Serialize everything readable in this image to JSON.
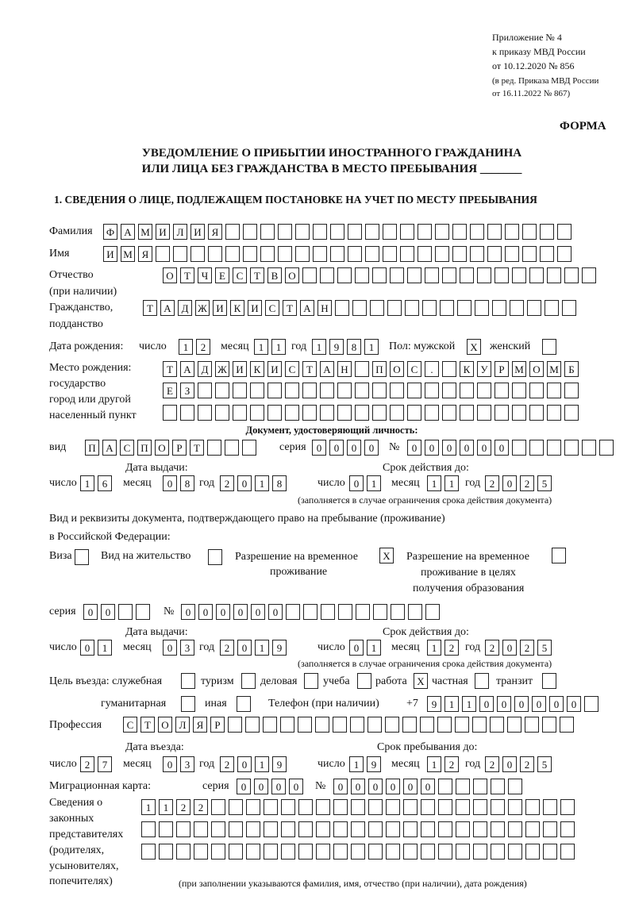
{
  "header": {
    "appendix_line1": "Приложение № 4",
    "appendix_line2": "к приказу МВД России",
    "appendix_line3": "от 10.12.2020 № 856",
    "edition_line1": "(в ред. Приказа МВД России",
    "edition_line2": "от 16.11.2022 № 867)",
    "form_label": "ФОРМА",
    "title_line1": "УВЕДОМЛЕНИЕ О ПРИБЫТИИ ИНОСТРАННОГО ГРАЖДАНИНА",
    "title_line2": "ИЛИ ЛИЦА БЕЗ ГРАЖДАНСТВА В МЕСТО ПРЕБЫВАНИЯ _______",
    "section1": "1. СВЕДЕНИЯ О ЛИЦЕ, ПОДЛЕЖАЩЕМ ПОСТАНОВКЕ НА УЧЕТ ПО МЕСТУ ПРЕБЫВАНИЯ"
  },
  "labels": {
    "surname": "Фамилия",
    "name": "Имя",
    "patronymic": "Отчество",
    "patronymic_note": "(при наличии)",
    "citizenship": "Гражданство,",
    "citizenship2": "подданство",
    "birth_date": "Дата рождения:",
    "day": "число",
    "month": "месяц",
    "year": "год",
    "sex": "Пол: мужской",
    "female": "женский",
    "birthplace1": "Место рождения:",
    "birthplace2": "государство",
    "birthplace3": "город или другой",
    "birthplace4": "населенный пункт",
    "id_doc": "Документ, удостоверяющий личность:",
    "kind": "вид",
    "series": "серия",
    "number": "№",
    "issue_date": "Дата выдачи:",
    "valid_until": "Срок действия до:",
    "valid_note": "(заполняется в случае ограничения срока действия документа)",
    "stay_doc1": "Вид и реквизиты документа, подтверждающего право на пребывание (проживание)",
    "stay_doc2": "в Российской Федерации:",
    "visa": "Виза",
    "residence": "Вид на жительство",
    "temp_res1": "Разрешение на временное",
    "temp_res2": "проживание",
    "temp_edu1": "Разрешение на временное",
    "temp_edu2": "проживание в целях",
    "temp_edu3": "получения образования",
    "purpose": "Цель въезда: служебная",
    "tourism": "туризм",
    "business": "деловая",
    "study": "учеба",
    "work": "работа",
    "private": "частная",
    "transit": "транзит",
    "humanitarian": "гуманитарная",
    "other": "иная",
    "phone": "Телефон (при наличии)",
    "phone_prefix": "+7",
    "profession": "Профессия",
    "entry_date": "Дата въезда:",
    "stay_until": "Срок пребывания до:",
    "migration_card": "Миграционная карта:",
    "rep1": "Сведения о",
    "rep2": "законных",
    "rep3": "представителях",
    "rep4": "(родителях,",
    "rep5": "усыновителях,",
    "rep6": "попечителях)",
    "rep_note": "(при заполнении указываются фамилия, имя, отчество (при наличии), дата рождения)"
  },
  "fields": {
    "surname": [
      "Ф",
      "А",
      "М",
      "И",
      "Л",
      "И",
      "Я",
      "",
      "",
      "",
      "",
      "",
      "",
      "",
      "",
      "",
      "",
      "",
      "",
      "",
      "",
      "",
      "",
      "",
      "",
      "",
      ""
    ],
    "name": [
      "И",
      "М",
      "Я",
      "",
      "",
      "",
      "",
      "",
      "",
      "",
      "",
      "",
      "",
      "",
      "",
      "",
      "",
      "",
      "",
      "",
      "",
      "",
      "",
      "",
      "",
      "",
      ""
    ],
    "patronymic": [
      "О",
      "Т",
      "Ч",
      "Е",
      "С",
      "Т",
      "В",
      "О",
      "",
      "",
      "",
      "",
      "",
      "",
      "",
      "",
      "",
      "",
      "",
      "",
      "",
      "",
      "",
      "",
      ""
    ],
    "citizenship": [
      "Т",
      "А",
      "Д",
      "Ж",
      "И",
      "К",
      "И",
      "С",
      "Т",
      "А",
      "Н",
      "",
      "",
      "",
      "",
      "",
      "",
      "",
      "",
      "",
      "",
      "",
      "",
      "",
      ""
    ],
    "birth_day": [
      "1",
      "2"
    ],
    "birth_month": [
      "1",
      "1"
    ],
    "birth_year": [
      "1",
      "9",
      "8",
      "1"
    ],
    "sex_male": [
      "X"
    ],
    "sex_female": [
      ""
    ],
    "birthplace_row1": [
      "Т",
      "А",
      "Д",
      "Ж",
      "И",
      "К",
      "И",
      "С",
      "Т",
      "А",
      "Н",
      "",
      "П",
      "О",
      "С",
      ".",
      "",
      "К",
      "У",
      "Р",
      "М",
      "О",
      "М",
      "Б"
    ],
    "birthplace_row2": [
      "Е",
      "З",
      "",
      "",
      "",
      "",
      "",
      "",
      "",
      "",
      "",
      "",
      "",
      "",
      "",
      "",
      "",
      "",
      "",
      "",
      "",
      "",
      "",
      ""
    ],
    "birthplace_row3": [
      "",
      "",
      "",
      "",
      "",
      "",
      "",
      "",
      "",
      "",
      "",
      "",
      "",
      "",
      "",
      "",
      "",
      "",
      "",
      "",
      "",
      "",
      "",
      ""
    ],
    "id_kind": [
      "П",
      "А",
      "С",
      "П",
      "О",
      "Р",
      "Т",
      "",
      "",
      ""
    ],
    "id_series": [
      "0",
      "0",
      "0",
      "0"
    ],
    "id_number": [
      "0",
      "0",
      "0",
      "0",
      "0",
      "0",
      "",
      "",
      "",
      "",
      "",
      ""
    ],
    "id_issue_day": [
      "1",
      "6"
    ],
    "id_issue_month": [
      "0",
      "8"
    ],
    "id_issue_year": [
      "2",
      "0",
      "1",
      "8"
    ],
    "id_valid_day": [
      "0",
      "1"
    ],
    "id_valid_month": [
      "1",
      "1"
    ],
    "id_valid_year": [
      "2",
      "0",
      "2",
      "5"
    ],
    "visa": [
      ""
    ],
    "residence": [
      ""
    ],
    "temp_res": [
      "X"
    ],
    "temp_edu": [
      ""
    ],
    "stay_series": [
      "0",
      "0",
      "",
      ""
    ],
    "stay_number": [
      "0",
      "0",
      "0",
      "0",
      "0",
      "0",
      "",
      "",
      "",
      "",
      "",
      "",
      "",
      "",
      ""
    ],
    "stay_issue_day": [
      "0",
      "1"
    ],
    "stay_issue_month": [
      "0",
      "3"
    ],
    "stay_issue_year": [
      "2",
      "0",
      "1",
      "9"
    ],
    "stay_valid_day": [
      "0",
      "1"
    ],
    "stay_valid_month": [
      "1",
      "2"
    ],
    "stay_valid_year": [
      "2",
      "0",
      "2",
      "5"
    ],
    "p_service": [
      ""
    ],
    "p_tourism": [
      ""
    ],
    "p_business": [
      ""
    ],
    "p_study": [
      ""
    ],
    "p_work": [
      "X"
    ],
    "p_private": [
      ""
    ],
    "p_transit": [
      ""
    ],
    "p_humanitarian": [
      ""
    ],
    "p_other": [
      ""
    ],
    "phone": [
      "9",
      "1",
      "1",
      "0",
      "0",
      "0",
      "0",
      "0",
      "0",
      ""
    ],
    "profession": [
      "С",
      "Т",
      "О",
      "Л",
      "Я",
      "Р",
      "",
      "",
      "",
      "",
      "",
      "",
      "",
      "",
      "",
      "",
      "",
      "",
      "",
      "",
      "",
      "",
      "",
      "",
      "",
      ""
    ],
    "entry_day": [
      "2",
      "7"
    ],
    "entry_month": [
      "0",
      "3"
    ],
    "entry_year": [
      "2",
      "0",
      "1",
      "9"
    ],
    "until_day": [
      "1",
      "9"
    ],
    "until_month": [
      "1",
      "2"
    ],
    "until_year": [
      "2",
      "0",
      "2",
      "5"
    ],
    "mc_series": [
      "0",
      "0",
      "0",
      "0"
    ],
    "mc_number": [
      "0",
      "0",
      "0",
      "0",
      "0",
      "0",
      "",
      "",
      "",
      "",
      ""
    ],
    "rep_row1": [
      "1",
      "1",
      "2",
      "2",
      "",
      "",
      "",
      "",
      "",
      "",
      "",
      "",
      "",
      "",
      "",
      "",
      "",
      "",
      "",
      "",
      "",
      "",
      "",
      "",
      ""
    ],
    "rep_row2": [
      "",
      "",
      "",
      "",
      "",
      "",
      "",
      "",
      "",
      "",
      "",
      "",
      "",
      "",
      "",
      "",
      "",
      "",
      "",
      "",
      "",
      "",
      "",
      "",
      ""
    ],
    "rep_row3": [
      "",
      "",
      "",
      "",
      "",
      "",
      "",
      "",
      "",
      "",
      "",
      "",
      "",
      "",
      "",
      "",
      "",
      "",
      "",
      "",
      "",
      "",
      "",
      "",
      ""
    ]
  }
}
